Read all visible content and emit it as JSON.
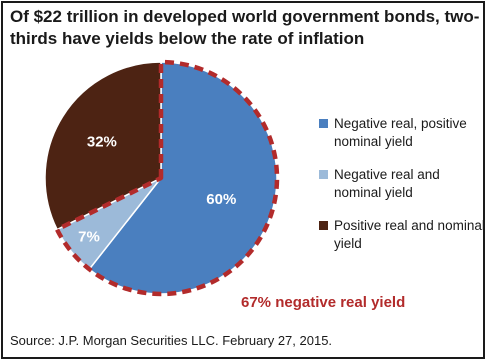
{
  "chart_data": {
    "type": "pie",
    "title": "Of $22 trillion in developed world government bonds, two-thirds have yields below the rate of inflation",
    "slices": [
      {
        "label": "Negative real, positive nominal yield",
        "value": 60,
        "value_label": "60%",
        "color": "#4a7fbf"
      },
      {
        "label": "Negative real and nominal yield",
        "value": 7,
        "value_label": "7%",
        "color": "#9cbad9"
      },
      {
        "label": "Positive real and nominal yield",
        "value": 32,
        "value_label": "32%",
        "color": "#4d2313"
      }
    ],
    "highlight": {
      "text": "67% negative real yield",
      "color": "#b22b2b"
    },
    "legend_position": "right"
  },
  "source": "Source: J.P. Morgan Securities LLC. February 27, 2015."
}
